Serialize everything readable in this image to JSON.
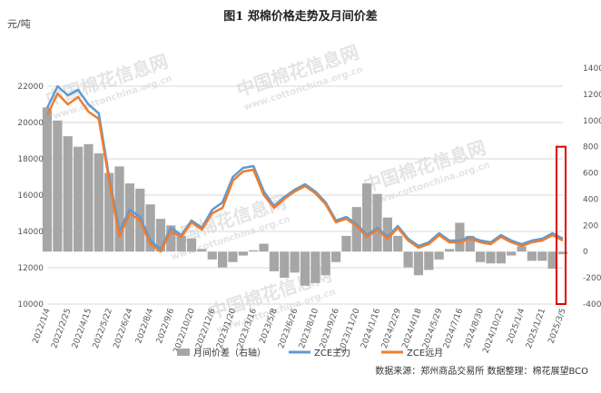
{
  "chart_data": {
    "type": "line",
    "title": "图1  郑棉价格走势及月间价差",
    "y_unit": "元/吨",
    "watermark": [
      "中国棉花信息网",
      "www.cottonchina.org.cn"
    ],
    "source": "数据来源：郑州商品交易所    数据整理：棉花展望BCO",
    "ylim_left": [
      10000,
      23000
    ],
    "ylim_right": [
      -400,
      1400
    ],
    "left_ticks": [
      "10000",
      "12000",
      "14000",
      "16000",
      "18000",
      "20000",
      "22000"
    ],
    "right_ticks": [
      "-400",
      "-200",
      "0",
      "200",
      "400",
      "600",
      "800",
      "1000",
      "1200",
      "1400"
    ],
    "x_tick_labels": [
      "2022/1/4",
      "2022/2/25",
      "2022/4/15",
      "2022/5/22",
      "2022/6/24",
      "2022/8/4",
      "2022/9/6",
      "2022/10/20",
      "2022/12/6",
      "2023/1/20",
      "2023/3/16",
      "2023/5/8",
      "2023/6/26",
      "2023/8/10",
      "2023/9/26",
      "2023/11/20",
      "2024/1/16",
      "2024/2/29",
      "2024/4/18",
      "2024/5/29",
      "2024/7/16",
      "2024/8/30",
      "2024/10/22",
      "2025/1/4",
      "2025/1/21",
      "2025/3/5"
    ],
    "grid": "horizontal",
    "legend_position": "bottom",
    "series": [
      {
        "name": "月间价差（右轴）",
        "kind": "bar",
        "axis": "right",
        "color": "#a6a6a6",
        "x": [
          0,
          0.5,
          1,
          1.5,
          2,
          2.5,
          3,
          3.5,
          4,
          4.5,
          5,
          5.5,
          6,
          6.5,
          7,
          7.5,
          8,
          8.5,
          9,
          9.5,
          10,
          10.5,
          11,
          11.5,
          12,
          12.5,
          13,
          13.5,
          14,
          14.5,
          15,
          15.5,
          16,
          16.5,
          17,
          17.5,
          18,
          18.5,
          19,
          19.5,
          20,
          20.5,
          21,
          21.5,
          22,
          22.5,
          23,
          23.5,
          24,
          24.5,
          25
        ],
        "values": [
          1100,
          1000,
          880,
          800,
          820,
          750,
          600,
          650,
          520,
          480,
          360,
          250,
          200,
          120,
          100,
          20,
          -60,
          -120,
          -80,
          -30,
          10,
          60,
          -150,
          -200,
          -160,
          -260,
          -240,
          -180,
          -80,
          120,
          340,
          520,
          440,
          260,
          120,
          -120,
          -180,
          -140,
          -60,
          20,
          220,
          120,
          -80,
          -90,
          -90,
          -30,
          40,
          -70,
          -70,
          -130,
          -20
        ],
        "highlight_box_y": [
          -400,
          800
        ]
      },
      {
        "name": "ZCE主力",
        "kind": "line",
        "axis": "left",
        "color": "#5b9bd5",
        "x": [
          0,
          0.5,
          1,
          1.5,
          2,
          2.5,
          3,
          3.5,
          4,
          4.5,
          5,
          5.5,
          6,
          6.5,
          7,
          7.5,
          8,
          8.5,
          9,
          9.5,
          10,
          10.5,
          11,
          11.5,
          12,
          12.5,
          13,
          13.5,
          14,
          14.5,
          15,
          15.5,
          16,
          16.5,
          17,
          17.5,
          18,
          18.5,
          19,
          19.5,
          20,
          20.5,
          21,
          21.5,
          22,
          22.5,
          23,
          23.5,
          24,
          24.5,
          25
        ],
        "values": [
          20800,
          22000,
          21500,
          21800,
          21000,
          20500,
          17000,
          14000,
          15200,
          14800,
          13500,
          13000,
          14200,
          13800,
          14600,
          14200,
          15200,
          15600,
          17000,
          17500,
          17600,
          16200,
          15400,
          15900,
          16300,
          16600,
          16200,
          15600,
          14600,
          14800,
          14400,
          13800,
          14200,
          13700,
          14300,
          13600,
          13200,
          13400,
          13900,
          13500,
          13500,
          13700,
          13500,
          13400,
          13800,
          13500,
          13300,
          13500,
          13600,
          13900,
          13600
        ]
      },
      {
        "name": "ZCE远月",
        "kind": "line",
        "axis": "left",
        "color": "#ed7d31",
        "x": [
          0,
          0.5,
          1,
          1.5,
          2,
          2.5,
          3,
          3.5,
          4,
          4.5,
          5,
          5.5,
          6,
          6.5,
          7,
          7.5,
          8,
          8.5,
          9,
          9.5,
          10,
          10.5,
          11,
          11.5,
          12,
          12.5,
          13,
          13.5,
          14,
          14.5,
          15,
          15.5,
          16,
          16.5,
          17,
          17.5,
          18,
          18.5,
          19,
          19.5,
          20,
          20.5,
          21,
          21.5,
          22,
          22.5,
          23,
          23.5,
          24,
          24.5,
          25
        ],
        "values": [
          20400,
          21600,
          21000,
          21400,
          20600,
          20200,
          16800,
          13700,
          15000,
          14600,
          13300,
          12900,
          14000,
          13700,
          14500,
          14100,
          15000,
          15300,
          16800,
          17300,
          17400,
          16000,
          15300,
          15800,
          16200,
          16500,
          16100,
          15500,
          14500,
          14700,
          14300,
          13700,
          14100,
          13600,
          14200,
          13500,
          13100,
          13300,
          13800,
          13400,
          13400,
          13600,
          13400,
          13300,
          13700,
          13400,
          13200,
          13400,
          13500,
          13800,
          13500
        ]
      }
    ]
  }
}
